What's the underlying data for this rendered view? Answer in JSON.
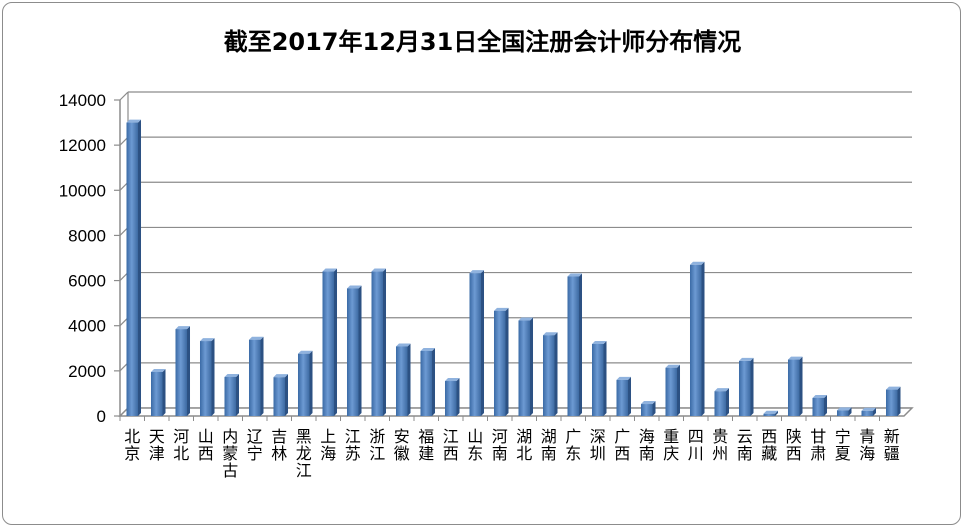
{
  "chart_data": {
    "type": "bar",
    "title": "截至2017年12月31日全国注册会计师分布情况",
    "xlabel": "",
    "ylabel": "",
    "ylim": [
      0,
      14000
    ],
    "yticks": [
      0,
      2000,
      4000,
      6000,
      8000,
      10000,
      12000,
      14000
    ],
    "grid": true,
    "categories": [
      "北京",
      "天津",
      "河北",
      "山西",
      "内蒙古",
      "辽宁",
      "吉林",
      "黑龙江",
      "上海",
      "江苏",
      "浙江",
      "安徽",
      "福建",
      "江西",
      "山东",
      "河南",
      "湖北",
      "湖南",
      "广东",
      "深圳",
      "广西",
      "海南",
      "重庆",
      "四川",
      "贵州",
      "云南",
      "西藏",
      "陕西",
      "甘肃",
      "宁夏",
      "青海",
      "新疆"
    ],
    "values": [
      13000,
      1950,
      3850,
      3320,
      1730,
      3380,
      1720,
      2760,
      6400,
      5650,
      6400,
      3080,
      2880,
      1550,
      6330,
      4660,
      4230,
      3580,
      6180,
      3190,
      1600,
      530,
      2140,
      6700,
      1100,
      2440,
      100,
      2500,
      800,
      250,
      230,
      1170
    ],
    "bar_color": "#4f81bd"
  }
}
